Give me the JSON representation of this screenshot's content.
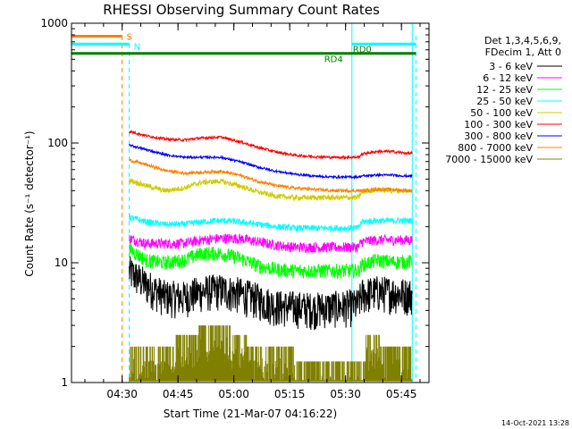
{
  "chart_data": {
    "type": "line",
    "title": "RHESSI Observing Summary Count Rates",
    "xlabel": "Start Time (21-Mar-07 04:16:22)",
    "ylabel": "Count Rate (s⁻¹ detector⁻¹)",
    "y_scale": "log",
    "ylim": [
      1,
      1000
    ],
    "xlim_minutes": [
      0,
      96
    ],
    "x_start": "04:16:22",
    "x_tick_labels": [
      "04:30",
      "04:45",
      "05:00",
      "05:15",
      "05:30",
      "05:45"
    ],
    "x_ticks_minutes": [
      13.6,
      28.6,
      43.6,
      58.6,
      73.6,
      88.6
    ],
    "y_tick_labels": [
      "1",
      "10",
      "100",
      "1000"
    ],
    "y_ticks": [
      1,
      10,
      100,
      1000
    ],
    "legend_header": [
      "Det 1,3,4,5,6,9,",
      "FDecim 1, Att 0"
    ],
    "legend_position": "right",
    "data_window_minutes": [
      15.5,
      91.5
    ],
    "series": [
      {
        "name": "3 - 6 keV",
        "color": "#000000",
        "x": [
          15.5,
          20,
          25,
          30,
          35,
          40,
          45,
          50,
          55,
          60,
          65,
          70,
          75,
          77,
          78,
          82,
          86,
          90,
          91.5
        ],
        "y": [
          8.5,
          6.6,
          5.3,
          5.2,
          5.8,
          6.0,
          5.6,
          5.0,
          4.4,
          4.3,
          4.2,
          4.3,
          4.4,
          4.5,
          5.5,
          5.8,
          5.7,
          5.5,
          5.5
        ]
      },
      {
        "name": "6 - 12 keV",
        "color": "#ff00ff",
        "x": [
          15.5,
          20,
          25,
          30,
          35,
          40,
          45,
          50,
          55,
          60,
          65,
          70,
          75,
          77,
          78,
          82,
          86,
          90,
          91.5
        ],
        "y": [
          16,
          14.5,
          14.5,
          14.5,
          15.5,
          16,
          16,
          15,
          14,
          13.5,
          13.5,
          13.5,
          13.5,
          13.5,
          15,
          15.5,
          15.5,
          15.5,
          15.5
        ]
      },
      {
        "name": "12 - 25 keV",
        "color": "#00ff00",
        "x": [
          15.5,
          20,
          25,
          30,
          35,
          40,
          45,
          50,
          55,
          60,
          65,
          70,
          75,
          77,
          78,
          82,
          86,
          90,
          91.5
        ],
        "y": [
          13,
          10.5,
          10,
          10.5,
          12,
          12,
          11,
          9.5,
          8.8,
          8.6,
          8.6,
          8.6,
          8.6,
          8.6,
          9.6,
          10.5,
          10.2,
          10.2,
          10.2
        ]
      },
      {
        "name": "25 - 50 keV",
        "color": "#00ffff",
        "x": [
          15.5,
          20,
          25,
          30,
          35,
          40,
          45,
          50,
          55,
          60,
          65,
          70,
          75,
          77,
          78,
          82,
          86,
          90,
          91.5
        ],
        "y": [
          24,
          22,
          21,
          21,
          22,
          22.5,
          22,
          21,
          20,
          19.5,
          19.5,
          19.5,
          19.5,
          19.5,
          22,
          22.5,
          22.5,
          22.5,
          22.5
        ]
      },
      {
        "name": "50 - 100 keV",
        "color": "#cccc00",
        "x": [
          15.5,
          20,
          25,
          30,
          35,
          40,
          45,
          50,
          55,
          60,
          65,
          70,
          75,
          77,
          78,
          82,
          86,
          90,
          91.5
        ],
        "y": [
          49,
          44,
          40,
          42,
          47,
          48,
          44,
          39,
          36,
          35,
          35,
          35,
          35,
          35,
          39,
          41,
          40,
          40,
          40
        ]
      },
      {
        "name": "100 - 300 keV",
        "color": "#ff0000",
        "x": [
          15.5,
          20,
          25,
          30,
          35,
          40,
          45,
          50,
          55,
          60,
          65,
          70,
          75,
          77,
          78,
          82,
          86,
          90,
          91.5
        ],
        "y": [
          125,
          115,
          108,
          106,
          110,
          112,
          103,
          92,
          84,
          79,
          77,
          76,
          76,
          76,
          81,
          85,
          85,
          82,
          82
        ]
      },
      {
        "name": "300 - 800 keV",
        "color": "#0000ff",
        "x": [
          15.5,
          20,
          25,
          30,
          35,
          40,
          45,
          50,
          55,
          60,
          65,
          70,
          75,
          77,
          78,
          82,
          86,
          90,
          91.5
        ],
        "y": [
          96,
          88,
          80,
          76,
          76,
          76,
          70,
          63,
          58,
          55,
          53,
          52,
          52,
          52,
          53,
          54,
          54,
          53,
          53
        ]
      },
      {
        "name": "800 - 7000 keV",
        "color": "#ff8000",
        "x": [
          15.5,
          20,
          25,
          30,
          35,
          40,
          45,
          50,
          55,
          60,
          65,
          70,
          75,
          77,
          78,
          82,
          86,
          90,
          91.5
        ],
        "y": [
          72,
          66,
          59,
          56,
          57,
          58,
          54,
          48,
          44,
          42,
          41,
          40,
          40,
          40,
          40,
          41,
          41,
          40,
          40
        ]
      },
      {
        "name": "7000 - 15000 keV",
        "color": "#808000",
        "x": [
          15.5,
          28,
          28,
          34,
          34,
          43,
          43,
          47,
          47,
          60,
          60,
          79,
          79,
          83,
          83,
          91.5
        ],
        "y": [
          2,
          2,
          2.5,
          2.5,
          3,
          3,
          2.5,
          2.5,
          2,
          2,
          1.5,
          1.5,
          2.5,
          2.5,
          2,
          2
        ]
      }
    ],
    "annotations": {
      "S_label": "S",
      "N_label": "N",
      "RD4_label": "RD4",
      "RD0_label": "RD0",
      "timestamp": "14-Oct-2021 13:28",
      "saa_bar": {
        "x": [
          0,
          13.6
        ],
        "y": 780,
        "color": "#ff8000"
      },
      "night_bar": {
        "x": [
          0,
          15.5
        ],
        "y": 670,
        "color": "#00ffff"
      },
      "night_bar2": {
        "x": [
          75.3,
          92.5
        ],
        "y": 670,
        "color": "#00ffff"
      },
      "green_bar": {
        "x": [
          0,
          92.5
        ],
        "y": 560,
        "color": "#008000"
      },
      "orange_dashed_x": 13.6,
      "cyan_dashed_x": [
        15.5,
        92.5
      ],
      "cyan_solid_x": [
        0,
        75.3,
        91.5
      ],
      "colors": {
        "axis": "#000000",
        "S": "#ff8000",
        "N": "#00ffff",
        "RD": "#008000"
      }
    }
  }
}
